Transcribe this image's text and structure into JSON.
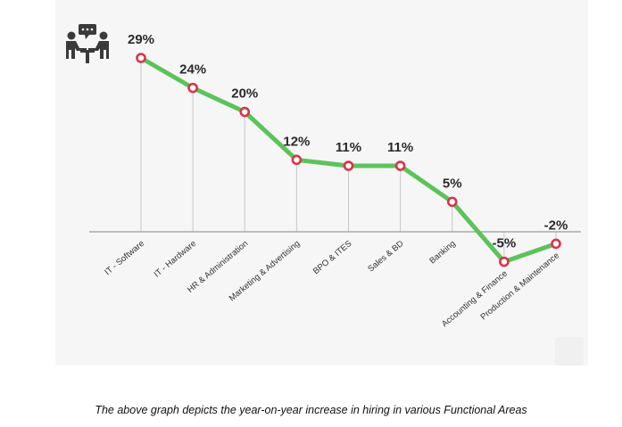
{
  "caption": "The above graph depicts the year-on-year increase in hiring in various Functional Areas",
  "icon": "meeting-people-icon",
  "colors": {
    "line": "#5cc35a",
    "marker_stroke": "#d9334a",
    "marker_fill": "#ffffff",
    "axis": "#9a9a9a",
    "drop_line": "#c8c8c8",
    "label": "#2a2a2a",
    "icon": "#3a3a3a"
  },
  "chart_data": {
    "type": "line",
    "categories": [
      "IT - Software",
      "IT - Hardware",
      "HR & Administration",
      "Marketing & Advertising",
      "BPO & ITES",
      "Sales & BD",
      "Banking",
      "Accounting & Finance",
      "Production & Maintenance"
    ],
    "values": [
      29,
      24,
      20,
      12,
      11,
      11,
      5,
      -5,
      -2
    ],
    "value_labels": [
      "29%",
      "24%",
      "20%",
      "12%",
      "11%",
      "11%",
      "5%",
      "-5%",
      "-2%"
    ],
    "ylim": [
      -5,
      29
    ],
    "grid": false,
    "legend": "none"
  }
}
